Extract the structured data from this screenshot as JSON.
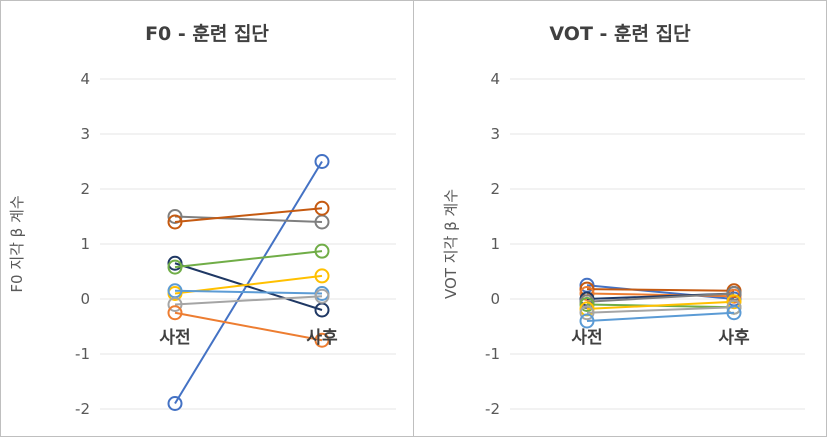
{
  "chart_data": [
    {
      "type": "line",
      "title": "F0 - 훈련 집단",
      "ylabel": "F0 지각 β 계수",
      "xlabel": "",
      "categories": [
        "사전",
        "사후"
      ],
      "ylim": [
        -2,
        4
      ],
      "yticks": [
        "-2",
        "-1",
        "0",
        "1",
        "2",
        "3",
        "4"
      ],
      "grid": true,
      "legend": "none",
      "series": [
        {
          "color": "#4472c4",
          "values": [
            -1.9,
            2.5
          ]
        },
        {
          "color": "#7f7f7f",
          "values": [
            1.5,
            1.4
          ]
        },
        {
          "color": "#c55a11",
          "values": [
            1.4,
            1.65
          ]
        },
        {
          "color": "#1f3864",
          "values": [
            0.65,
            -0.2
          ]
        },
        {
          "color": "#70ad47",
          "values": [
            0.58,
            0.87
          ]
        },
        {
          "color": "#ffc000",
          "values": [
            0.1,
            0.42
          ]
        },
        {
          "color": "#5b9bd5",
          "values": [
            0.15,
            0.1
          ]
        },
        {
          "color": "#a5a5a5",
          "values": [
            -0.1,
            0.05
          ]
        },
        {
          "color": "#ed7d31",
          "values": [
            -0.25,
            -0.75
          ]
        }
      ]
    },
    {
      "type": "line",
      "title": "VOT - 훈련 집단",
      "ylabel": "VOT 지각 β 계수",
      "xlabel": "",
      "categories": [
        "사전",
        "사후"
      ],
      "ylim": [
        -2,
        4
      ],
      "yticks": [
        "-2",
        "-1",
        "0",
        "1",
        "2",
        "3",
        "4"
      ],
      "grid": true,
      "legend": "none",
      "series": [
        {
          "color": "#4472c4",
          "values": [
            0.25,
            0.0
          ]
        },
        {
          "color": "#c55a11",
          "values": [
            0.18,
            0.15
          ]
        },
        {
          "color": "#ed7d31",
          "values": [
            0.1,
            0.05
          ]
        },
        {
          "color": "#1f3864",
          "values": [
            0.0,
            0.1
          ]
        },
        {
          "color": "#7f7f7f",
          "values": [
            -0.05,
            0.1
          ]
        },
        {
          "color": "#70ad47",
          "values": [
            -0.1,
            -0.15
          ]
        },
        {
          "color": "#ffc000",
          "values": [
            -0.18,
            -0.05
          ]
        },
        {
          "color": "#a5a5a5",
          "values": [
            -0.25,
            -0.15
          ]
        },
        {
          "color": "#5b9bd5",
          "values": [
            -0.4,
            -0.25
          ]
        }
      ]
    }
  ]
}
